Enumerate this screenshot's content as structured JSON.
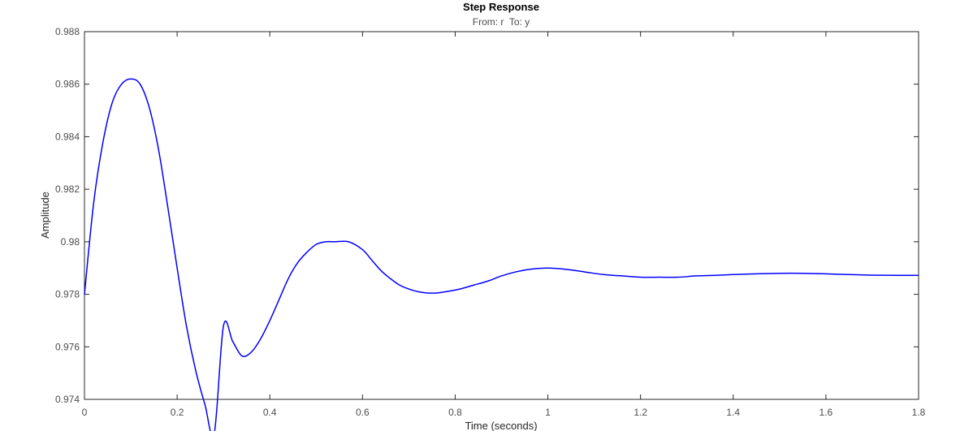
{
  "chart_data": {
    "type": "line",
    "title": "Step Response",
    "subtitle": "From: r  To: y",
    "xlabel": "Time (seconds)",
    "ylabel": "Amplitude",
    "xlim": [
      0,
      1.8
    ],
    "ylim": [
      0.974,
      0.988
    ],
    "xticks": [
      0,
      0.2,
      0.4,
      0.6,
      0.8,
      1,
      1.2,
      1.4,
      1.6,
      1.8
    ],
    "xtick_labels": [
      "0",
      "0.2",
      "0.4",
      "0.6",
      "0.8",
      "1",
      "1.2",
      "1.4",
      "1.6",
      "1.8"
    ],
    "yticks": [
      0.974,
      0.976,
      0.978,
      0.98,
      0.982,
      0.984,
      0.986,
      0.988
    ],
    "ytick_labels": [
      "0.974",
      "0.976",
      "0.978",
      "0.98",
      "0.982",
      "0.984",
      "0.986",
      "0.988"
    ],
    "grid": false,
    "series": [
      {
        "color": "#0000ff",
        "x": [
          0,
          0.02,
          0.04,
          0.06,
          0.08,
          0.1,
          0.12,
          0.14,
          0.16,
          0.18,
          0.2,
          0.22,
          0.24,
          0.26,
          0.28,
          0.3,
          0.32,
          0.34,
          0.36,
          0.38,
          0.4,
          0.42,
          0.44,
          0.46,
          0.48,
          0.5,
          0.52,
          0.54,
          0.57,
          0.6,
          0.62,
          0.64,
          0.66,
          0.68,
          0.7,
          0.72,
          0.74,
          0.76,
          0.78,
          0.81,
          0.84,
          0.87,
          0.9,
          0.93,
          0.96,
          1.0,
          1.04,
          1.08,
          1.12,
          1.16,
          1.2,
          1.24,
          1.28,
          1.32,
          1.36,
          1.4,
          1.45,
          1.5,
          1.55,
          1.6,
          1.65,
          1.7,
          1.75,
          1.8
        ],
        "y": [
          0.978,
          0.9815,
          0.9838,
          0.9853,
          0.986,
          0.9862,
          0.986,
          0.9851,
          0.9835,
          0.9813,
          0.979,
          0.9768,
          0.9751,
          0.9738,
          0.9727,
          0.9768,
          0.9762,
          0.97565,
          0.9758,
          0.9763,
          0.977,
          0.9778,
          0.9786,
          0.9792,
          0.9796,
          0.9799,
          0.98,
          0.98,
          0.98,
          0.9797,
          0.9793,
          0.9789,
          0.9786,
          0.97835,
          0.9782,
          0.9781,
          0.97805,
          0.97805,
          0.9781,
          0.9782,
          0.97835,
          0.9785,
          0.9787,
          0.97885,
          0.97895,
          0.979,
          0.97895,
          0.97885,
          0.97875,
          0.9787,
          0.97865,
          0.97865,
          0.97865,
          0.9787,
          0.97872,
          0.97875,
          0.97878,
          0.9788,
          0.9788,
          0.97878,
          0.97875,
          0.97873,
          0.97872,
          0.97872
        ]
      }
    ]
  }
}
